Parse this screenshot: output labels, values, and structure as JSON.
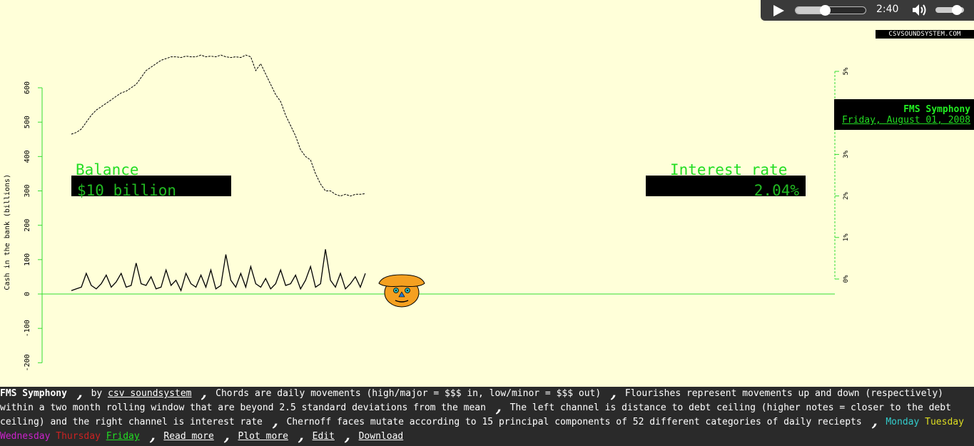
{
  "player": {
    "time": "2:40",
    "progress": 0.42,
    "volume": 0.75
  },
  "brand": "CSVSOUNDSYSTEM.COM",
  "panels": {
    "left_label": "Balance",
    "left_value": "$10 billion",
    "right_label": "Interest rate",
    "right_value": "2.04%"
  },
  "info": {
    "title": "FMS Symphony",
    "date": "Friday, August 01, 2008"
  },
  "chart_data": {
    "type": "line",
    "ylabel": "Cash in the bank (billions)",
    "y_ticks": [
      "600",
      "500",
      "400",
      "300",
      "200",
      "100",
      "0",
      "-100",
      "-200"
    ],
    "ylim": [
      -200,
      600
    ],
    "right_ticks": [
      "5%",
      "4%",
      "3%",
      "2%",
      "1%",
      "0%"
    ],
    "right_ylim": [
      0,
      5
    ],
    "series": [
      {
        "style": "dashed",
        "values": [
          465,
          470,
          480,
          500,
          520,
          535,
          545,
          555,
          565,
          575,
          585,
          590,
          600,
          610,
          630,
          650,
          660,
          670,
          680,
          685,
          690,
          690,
          688,
          692,
          690,
          690,
          695,
          690,
          692,
          690,
          695,
          690,
          688,
          690,
          688,
          695,
          690,
          650,
          670,
          640,
          610,
          580,
          560,
          520,
          490,
          460,
          420,
          400,
          390,
          350,
          320,
          300,
          300,
          290,
          285,
          290,
          285,
          290,
          290,
          292
        ]
      },
      {
        "style": "solid",
        "values": [
          10,
          15,
          20,
          60,
          25,
          15,
          30,
          55,
          20,
          35,
          60,
          20,
          25,
          90,
          30,
          25,
          50,
          15,
          20,
          70,
          25,
          40,
          10,
          60,
          30,
          20,
          55,
          20,
          70,
          15,
          25,
          115,
          40,
          20,
          60,
          20,
          80,
          30,
          20,
          45,
          15,
          30,
          70,
          25,
          30,
          55,
          15,
          40,
          80,
          20,
          30,
          130,
          40,
          20,
          60,
          15,
          30,
          50,
          20,
          60
        ]
      }
    ]
  },
  "footer": {
    "title": "FMS Symphony",
    "by": "by",
    "author": "csv soundsystem",
    "s1": "Chords are daily movements (high/major = $$$ in, low/minor = $$$ out)",
    "s2": "Flourishes represent movements up and down (respectively) within a two month rolling window that are beyond 2.5 standard deviations from the mean",
    "s3": "The left channel is distance to debt ceiling (higher notes = closer to the debt ceiling) and the right channel is interest rate",
    "s4": "Chernoff faces mutate according to 15 principal components of 52 different categories of daily reciepts",
    "days": [
      {
        "label": "Monday",
        "color": "#33cccc"
      },
      {
        "label": "Tuesday",
        "color": "#dddd22"
      },
      {
        "label": "Wednesday",
        "color": "#cc22cc"
      },
      {
        "label": "Thursday",
        "color": "#cc2222"
      },
      {
        "label": "Friday",
        "color": "#22dd22"
      }
    ],
    "links": [
      "Read more",
      "Plot more",
      "Edit",
      "Download"
    ]
  }
}
